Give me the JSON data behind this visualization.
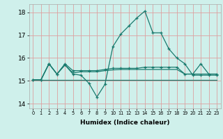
{
  "background_color": "#cff0eb",
  "grid_color": "#dda0a0",
  "line_color": "#1a7a6e",
  "xlabel": "Humidex (Indice chaleur)",
  "xlim": [
    -0.5,
    23.5
  ],
  "ylim": [
    13.8,
    18.35
  ],
  "yticks": [
    14,
    15,
    16,
    17,
    18
  ],
  "xticks": [
    0,
    1,
    2,
    3,
    4,
    5,
    6,
    7,
    8,
    9,
    10,
    11,
    12,
    13,
    14,
    15,
    16,
    17,
    18,
    19,
    20,
    21,
    22,
    23
  ],
  "line1_x": [
    0,
    1,
    2,
    3,
    4,
    5,
    6,
    7,
    8,
    9,
    10,
    11,
    12,
    13,
    14,
    15,
    16,
    17,
    18,
    19,
    20,
    21,
    22,
    23
  ],
  "line1_y": [
    15.05,
    15.05,
    15.75,
    15.3,
    15.7,
    15.3,
    15.25,
    14.9,
    14.3,
    14.85,
    16.5,
    17.05,
    17.4,
    17.75,
    18.05,
    17.1,
    17.1,
    16.4,
    16.0,
    15.75,
    15.25,
    15.25,
    15.25,
    15.25
  ],
  "line2_x": [
    0,
    1,
    2,
    3,
    4,
    5,
    6,
    7,
    8,
    9,
    10,
    11,
    12,
    13,
    14,
    15,
    16,
    17,
    18,
    19,
    20,
    21,
    22,
    23
  ],
  "line2_y": [
    15.05,
    15.05,
    15.75,
    15.3,
    15.75,
    15.45,
    15.45,
    15.45,
    15.45,
    15.5,
    15.55,
    15.55,
    15.55,
    15.55,
    15.6,
    15.6,
    15.6,
    15.6,
    15.6,
    15.3,
    15.3,
    15.75,
    15.3,
    15.3
  ],
  "line3_x": [
    0,
    1,
    2,
    3,
    4,
    5,
    6,
    7,
    8,
    9,
    10,
    11,
    12,
    13,
    14,
    15,
    16,
    17,
    18,
    19,
    20,
    21,
    22,
    23
  ],
  "line3_y": [
    15.05,
    15.05,
    15.75,
    15.3,
    15.7,
    15.35,
    15.4,
    15.4,
    15.4,
    15.45,
    15.48,
    15.5,
    15.5,
    15.5,
    15.5,
    15.5,
    15.5,
    15.5,
    15.5,
    15.3,
    15.3,
    15.3,
    15.3,
    15.3
  ],
  "line4_x": [
    0,
    1,
    2,
    3,
    4,
    5,
    6,
    7,
    8,
    9,
    10,
    11,
    12,
    13,
    14,
    15,
    16,
    17,
    18,
    19,
    20,
    21,
    22,
    23
  ],
  "line4_y": [
    15.05,
    15.05,
    15.05,
    15.05,
    15.05,
    15.05,
    15.05,
    15.05,
    15.05,
    15.05,
    15.05,
    15.05,
    15.05,
    15.05,
    15.05,
    15.05,
    15.05,
    15.05,
    15.05,
    15.05,
    15.05,
    15.05,
    15.05,
    15.05
  ]
}
